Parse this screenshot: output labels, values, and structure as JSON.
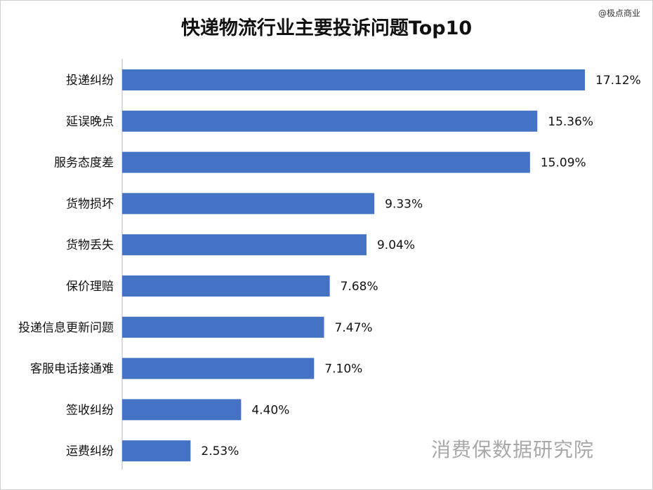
{
  "chart_data": {
    "type": "bar",
    "orientation": "horizontal",
    "title": "快递物流行业主要投诉问题Top10",
    "categories": [
      "投递纠纷",
      "延误晚点",
      "服务态度差",
      "货物损坏",
      "货物丢失",
      "保价理赔",
      "投递信息更新问题",
      "客服电话接通难",
      "签收纠纷",
      "运费纠纷"
    ],
    "values": [
      17.12,
      15.36,
      15.09,
      9.33,
      9.04,
      7.68,
      7.47,
      7.1,
      4.4,
      2.53
    ],
    "value_labels": [
      "17.12%",
      "15.36%",
      "15.09%",
      "9.33%",
      "9.04%",
      "7.68%",
      "7.47%",
      "7.10%",
      "4.40%",
      "2.53%"
    ],
    "xlabel": "",
    "ylabel": "",
    "xlim": [
      0,
      17.12
    ],
    "grid": false,
    "legend": "none",
    "bar_color": "#4472C4"
  },
  "watermark": "@极点商业",
  "source": "消费保数据研究院"
}
